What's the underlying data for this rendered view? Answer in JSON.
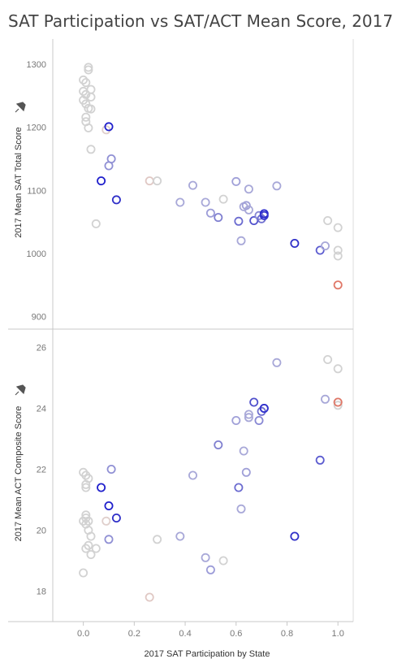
{
  "title": "SAT Participation vs SAT/ACT Mean Score, 2017",
  "chart_data": [
    {
      "type": "scatter",
      "name": "sat",
      "ylabel": "2017 Mean SAT Total Score",
      "ylim": [
        880,
        1340
      ],
      "yticks": [
        900,
        1000,
        1100,
        1200,
        1300
      ],
      "xlim": [
        -0.12,
        1.06
      ],
      "grid": false,
      "points": [
        {
          "x": 0.02,
          "y": 1295,
          "c": "#d2d2d2"
        },
        {
          "x": 0.02,
          "y": 1291,
          "c": "#d2d2d2"
        },
        {
          "x": 0.0,
          "y": 1275,
          "c": "#d2d2d2"
        },
        {
          "x": 0.01,
          "y": 1271,
          "c": "#d2d2d2"
        },
        {
          "x": 0.03,
          "y": 1260,
          "c": "#d2d2d2"
        },
        {
          "x": 0.0,
          "y": 1257,
          "c": "#d2d2d2"
        },
        {
          "x": 0.01,
          "y": 1252,
          "c": "#d2d2d2"
        },
        {
          "x": 0.03,
          "y": 1248,
          "c": "#d2d2d2"
        },
        {
          "x": 0.0,
          "y": 1243,
          "c": "#d2d2d2"
        },
        {
          "x": 0.01,
          "y": 1237,
          "c": "#d2d2d2"
        },
        {
          "x": 0.02,
          "y": 1230,
          "c": "#d2d2d2"
        },
        {
          "x": 0.03,
          "y": 1229,
          "c": "#d2d2d2"
        },
        {
          "x": 0.01,
          "y": 1216,
          "c": "#d2d2d2"
        },
        {
          "x": 0.01,
          "y": 1209,
          "c": "#d2d2d2"
        },
        {
          "x": 0.02,
          "y": 1199,
          "c": "#d2d2d2"
        },
        {
          "x": 0.09,
          "y": 1196,
          "c": "#e0cfcc"
        },
        {
          "x": 0.03,
          "y": 1165,
          "c": "#d2d2d2"
        },
        {
          "x": 0.1,
          "y": 1201,
          "c": "#2020cc"
        },
        {
          "x": 0.11,
          "y": 1150,
          "c": "#9090d4"
        },
        {
          "x": 0.1,
          "y": 1139,
          "c": "#9090d4"
        },
        {
          "x": 0.07,
          "y": 1115,
          "c": "#2020cc"
        },
        {
          "x": 0.13,
          "y": 1085,
          "c": "#3030c8"
        },
        {
          "x": 0.05,
          "y": 1047,
          "c": "#d2d2d2"
        },
        {
          "x": 0.26,
          "y": 1115,
          "c": "#e0c8c4"
        },
        {
          "x": 0.29,
          "y": 1115,
          "c": "#d2d2d2"
        },
        {
          "x": 0.43,
          "y": 1108,
          "c": "#a8a8d8"
        },
        {
          "x": 0.38,
          "y": 1081,
          "c": "#a8a8d8"
        },
        {
          "x": 0.48,
          "y": 1081,
          "c": "#a8a8d8"
        },
        {
          "x": 0.5,
          "y": 1064,
          "c": "#9c9cd8"
        },
        {
          "x": 0.53,
          "y": 1057,
          "c": "#8080d0"
        },
        {
          "x": 0.55,
          "y": 1086,
          "c": "#d2d2d2"
        },
        {
          "x": 0.6,
          "y": 1114,
          "c": "#a0a0d8"
        },
        {
          "x": 0.65,
          "y": 1102,
          "c": "#a8a8d8"
        },
        {
          "x": 0.63,
          "y": 1074,
          "c": "#a8a8d8"
        },
        {
          "x": 0.64,
          "y": 1076,
          "c": "#a0a0d8"
        },
        {
          "x": 0.65,
          "y": 1069,
          "c": "#a8a8d8"
        },
        {
          "x": 0.61,
          "y": 1051,
          "c": "#6c6cd0"
        },
        {
          "x": 0.62,
          "y": 1020,
          "c": "#a8a8d8"
        },
        {
          "x": 0.67,
          "y": 1052,
          "c": "#5050cc"
        },
        {
          "x": 0.69,
          "y": 1060,
          "c": "#8888d4"
        },
        {
          "x": 0.7,
          "y": 1055,
          "c": "#7070d0"
        },
        {
          "x": 0.71,
          "y": 1063,
          "c": "#2828cc"
        },
        {
          "x": 0.71,
          "y": 1060,
          "c": "#3434cc"
        },
        {
          "x": 0.76,
          "y": 1107,
          "c": "#a8a8d8"
        },
        {
          "x": 0.83,
          "y": 1016,
          "c": "#3030c8"
        },
        {
          "x": 0.93,
          "y": 1005,
          "c": "#5c5cd0"
        },
        {
          "x": 0.95,
          "y": 1012,
          "c": "#a8a8d8"
        },
        {
          "x": 0.96,
          "y": 1052,
          "c": "#d2d2d2"
        },
        {
          "x": 1.0,
          "y": 1041,
          "c": "#d2d2d2"
        },
        {
          "x": 1.0,
          "y": 1005,
          "c": "#d2d2d2"
        },
        {
          "x": 1.0,
          "y": 996,
          "c": "#d2d2d2"
        },
        {
          "x": 1.0,
          "y": 950,
          "c": "#e07868"
        }
      ]
    },
    {
      "type": "scatter",
      "name": "act",
      "xlabel": "2017 SAT Participation by State",
      "ylabel": "2017 Mean ACT Composite Score",
      "ylim": [
        17.0,
        26.6
      ],
      "yticks": [
        18,
        20,
        22,
        24,
        26
      ],
      "xlim": [
        -0.12,
        1.06
      ],
      "xticks": [
        0.0,
        0.2,
        0.4,
        0.6,
        0.8,
        1.0
      ],
      "xtick_labels": [
        "0.0",
        "0.2",
        "0.4",
        "0.6",
        "0.8",
        "1.0"
      ],
      "grid": false,
      "points": [
        {
          "x": 0.0,
          "y": 21.9,
          "c": "#d2d2d2"
        },
        {
          "x": 0.01,
          "y": 21.8,
          "c": "#d2d2d2"
        },
        {
          "x": 0.02,
          "y": 21.7,
          "c": "#d2d2d2"
        },
        {
          "x": 0.01,
          "y": 21.5,
          "c": "#d2d2d2"
        },
        {
          "x": 0.01,
          "y": 21.4,
          "c": "#d2d2d2"
        },
        {
          "x": 0.07,
          "y": 21.4,
          "c": "#2020cc"
        },
        {
          "x": 0.11,
          "y": 22.0,
          "c": "#9090d4"
        },
        {
          "x": 0.1,
          "y": 20.8,
          "c": "#2020cc"
        },
        {
          "x": 0.13,
          "y": 20.4,
          "c": "#3030c8"
        },
        {
          "x": 0.01,
          "y": 20.5,
          "c": "#d2d2d2"
        },
        {
          "x": 0.01,
          "y": 20.4,
          "c": "#d2d2d2"
        },
        {
          "x": 0.0,
          "y": 20.3,
          "c": "#d2d2d2"
        },
        {
          "x": 0.02,
          "y": 20.3,
          "c": "#d2d2d2"
        },
        {
          "x": 0.01,
          "y": 20.2,
          "c": "#d2d2d2"
        },
        {
          "x": 0.02,
          "y": 20.0,
          "c": "#d2d2d2"
        },
        {
          "x": 0.03,
          "y": 19.8,
          "c": "#d2d2d2"
        },
        {
          "x": 0.09,
          "y": 20.3,
          "c": "#e0cfcc"
        },
        {
          "x": 0.1,
          "y": 19.7,
          "c": "#9090d4"
        },
        {
          "x": 0.02,
          "y": 19.5,
          "c": "#d2d2d2"
        },
        {
          "x": 0.01,
          "y": 19.4,
          "c": "#d2d2d2"
        },
        {
          "x": 0.05,
          "y": 19.4,
          "c": "#d2d2d2"
        },
        {
          "x": 0.03,
          "y": 19.2,
          "c": "#d2d2d2"
        },
        {
          "x": 0.0,
          "y": 18.6,
          "c": "#d2d2d2"
        },
        {
          "x": 0.26,
          "y": 17.8,
          "c": "#e0c8c4"
        },
        {
          "x": 0.29,
          "y": 19.7,
          "c": "#d2d2d2"
        },
        {
          "x": 0.38,
          "y": 19.8,
          "c": "#a8a8d8"
        },
        {
          "x": 0.43,
          "y": 21.8,
          "c": "#a8a8d8"
        },
        {
          "x": 0.48,
          "y": 19.1,
          "c": "#a8a8d8"
        },
        {
          "x": 0.5,
          "y": 18.7,
          "c": "#9c9cd8"
        },
        {
          "x": 0.55,
          "y": 19.0,
          "c": "#d2d2d2"
        },
        {
          "x": 0.53,
          "y": 22.8,
          "c": "#8080d0"
        },
        {
          "x": 0.6,
          "y": 23.6,
          "c": "#a0a0d8"
        },
        {
          "x": 0.61,
          "y": 21.4,
          "c": "#6c6cd0"
        },
        {
          "x": 0.62,
          "y": 20.7,
          "c": "#a8a8d8"
        },
        {
          "x": 0.63,
          "y": 22.6,
          "c": "#a8a8d8"
        },
        {
          "x": 0.64,
          "y": 21.9,
          "c": "#a0a0d8"
        },
        {
          "x": 0.65,
          "y": 23.8,
          "c": "#a8a8d8"
        },
        {
          "x": 0.65,
          "y": 23.7,
          "c": "#a8a8d8"
        },
        {
          "x": 0.67,
          "y": 24.2,
          "c": "#5050cc"
        },
        {
          "x": 0.69,
          "y": 23.6,
          "c": "#8888d4"
        },
        {
          "x": 0.7,
          "y": 23.9,
          "c": "#7070d0"
        },
        {
          "x": 0.71,
          "y": 24.0,
          "c": "#2828cc"
        },
        {
          "x": 0.71,
          "y": 24.0,
          "c": "#3434cc"
        },
        {
          "x": 0.76,
          "y": 25.5,
          "c": "#a8a8d8"
        },
        {
          "x": 0.83,
          "y": 19.8,
          "c": "#3030c8"
        },
        {
          "x": 0.93,
          "y": 22.3,
          "c": "#5c5cd0"
        },
        {
          "x": 0.95,
          "y": 24.3,
          "c": "#a8a8d8"
        },
        {
          "x": 0.96,
          "y": 25.6,
          "c": "#d2d2d2"
        },
        {
          "x": 1.0,
          "y": 25.3,
          "c": "#d2d2d2"
        },
        {
          "x": 1.0,
          "y": 24.2,
          "c": "#d2d2d2"
        },
        {
          "x": 1.0,
          "y": 24.1,
          "c": "#d2d2d2"
        },
        {
          "x": 1.0,
          "y": 24.2,
          "c": "#e07868"
        }
      ]
    }
  ]
}
